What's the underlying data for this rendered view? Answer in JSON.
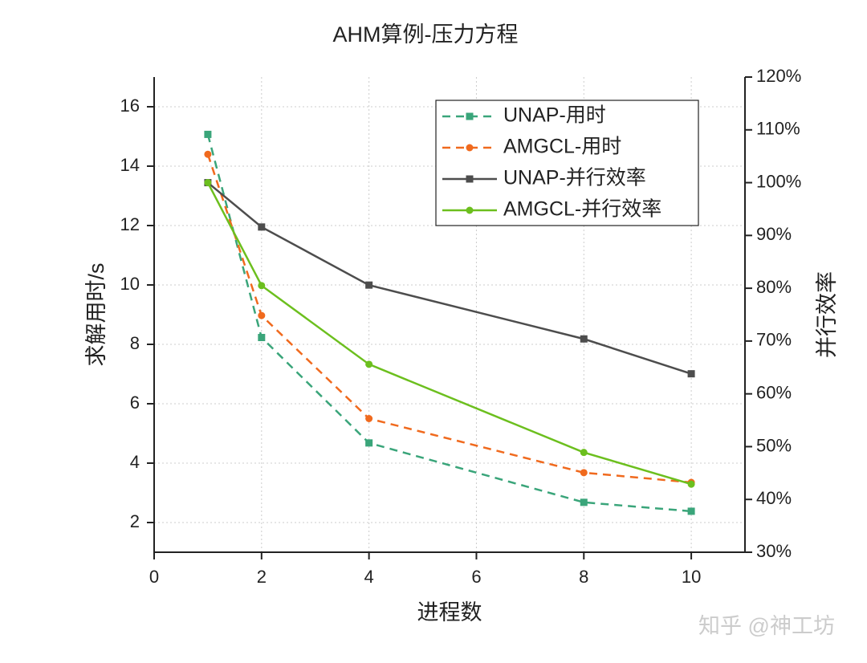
{
  "chart_data": {
    "type": "line",
    "title": "AHM算例-压力方程",
    "x_label": "进程数",
    "y_label": "求解用时/s",
    "y2_label": "并行效率",
    "x": [
      1,
      2,
      4,
      8,
      10
    ],
    "xlim": [
      0,
      11
    ],
    "xticks": [
      0,
      2,
      4,
      6,
      8,
      10
    ],
    "ylim": [
      1,
      17
    ],
    "yticks": [
      2,
      4,
      6,
      8,
      10,
      12,
      14,
      16
    ],
    "y2lim": [
      30,
      120
    ],
    "y2ticks": [
      {
        "value": 30,
        "label": "30%"
      },
      {
        "value": 40,
        "label": "40%"
      },
      {
        "value": 50,
        "label": "50%"
      },
      {
        "value": 60,
        "label": "60%"
      },
      {
        "value": 70,
        "label": "70%"
      },
      {
        "value": 80,
        "label": "80%"
      },
      {
        "value": 90,
        "label": "90%"
      },
      {
        "value": 100,
        "label": "100%"
      },
      {
        "value": 110,
        "label": "110%"
      },
      {
        "value": 120,
        "label": "120%"
      }
    ],
    "grid": true,
    "legend": "upper right",
    "series": [
      {
        "name": "UNAP-用时",
        "color": "#3aa57a",
        "dashed": true,
        "marker": "square",
        "values": [
          15.07,
          8.23,
          4.68,
          2.68,
          2.38
        ]
      },
      {
        "name": "AMGCL-用时",
        "color": "#f06a1e",
        "dashed": true,
        "marker": "circle",
        "values": [
          14.4,
          8.97,
          5.5,
          3.68,
          3.35
        ]
      },
      {
        "name": "UNAP-并行效率",
        "color": "#4d4d4d",
        "dashed": false,
        "marker": "square",
        "axis": "y2",
        "values": [
          100,
          91.6,
          80.6,
          70.4,
          63.8
        ]
      },
      {
        "name": "AMGCL-并行效率",
        "color": "#6cbf1e",
        "dashed": false,
        "marker": "circle",
        "axis": "y2",
        "values": [
          100,
          80.5,
          65.6,
          48.9,
          42.9
        ]
      }
    ],
    "watermark": "知乎 @神工坊"
  }
}
